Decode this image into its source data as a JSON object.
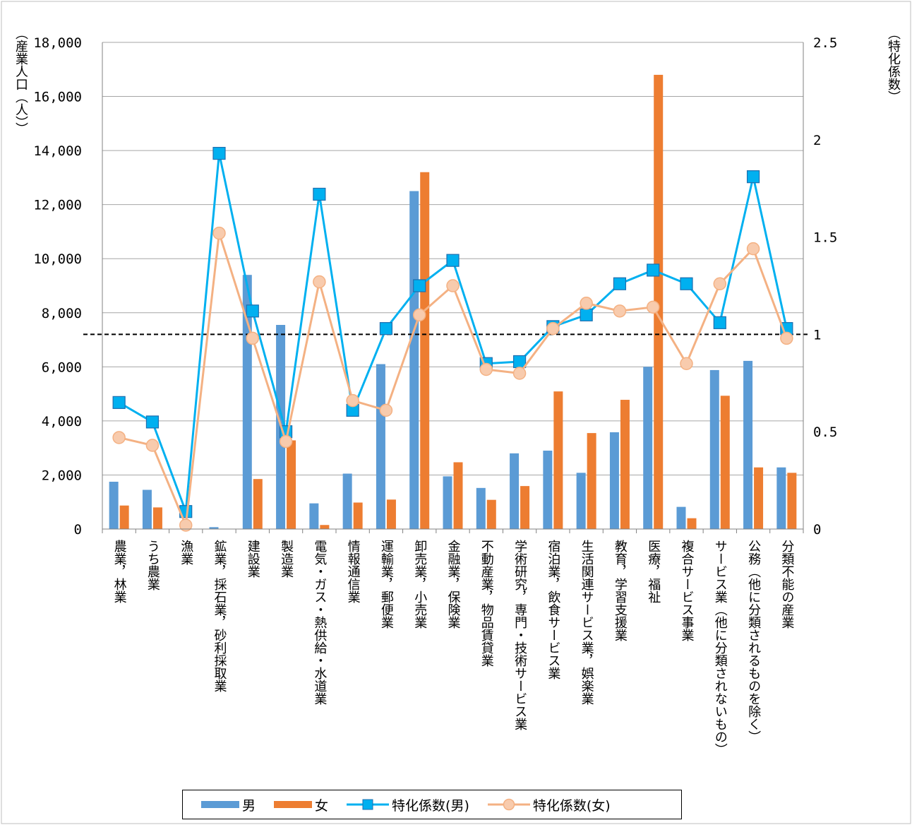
{
  "chart_data": {
    "type": "bar",
    "categories": [
      "農業，林業",
      "うち農業",
      "漁業",
      "鉱業，採石業，砂利採取業",
      "建設業",
      "製造業",
      "電気・ガス・熱供給・水道業",
      "情報通信業",
      "運輸業，郵便業",
      "卸売業，小売業",
      "金融業，保険業",
      "不動産業，物品賃貸業",
      "学術研究，専門・技術サービス業",
      "宿泊業，飲食サービス業",
      "生活関連サービス業，娯楽業",
      "教育，学習支援業",
      "医療，福祉",
      "複合サービス事業",
      "サービス業（他に分類されないもの）",
      "公務（他に分類されるものを除く）",
      "分類不能の産業"
    ],
    "series": [
      {
        "name": "男",
        "axis": "left",
        "kind": "bar",
        "color": "#5B9BD5",
        "values": [
          1750,
          1450,
          0,
          70,
          9400,
          7550,
          950,
          2050,
          6100,
          12500,
          1950,
          1520,
          2800,
          2900,
          2080,
          3580,
          6000,
          820,
          5880,
          6220,
          2280
        ]
      },
      {
        "name": "女",
        "axis": "left",
        "kind": "bar",
        "color": "#ED7D31",
        "values": [
          870,
          800,
          0,
          0,
          1850,
          3280,
          150,
          980,
          1090,
          13200,
          2470,
          1080,
          1590,
          5090,
          3550,
          4780,
          16800,
          400,
          4930,
          2280,
          2080
        ]
      },
      {
        "name": "特化係数(男)",
        "axis": "right",
        "kind": "line",
        "marker": "square",
        "color": "#00B0F0",
        "values": [
          0.65,
          0.55,
          0.09,
          1.93,
          1.12,
          0.5,
          1.72,
          0.61,
          1.03,
          1.25,
          1.38,
          0.85,
          0.86,
          1.04,
          1.1,
          1.26,
          1.33,
          1.26,
          1.06,
          1.81,
          1.03
        ]
      },
      {
        "name": "特化係数(女)",
        "axis": "right",
        "kind": "line",
        "marker": "circle",
        "color": "#F4B183",
        "marker_fill": "#F8CBAD",
        "values": [
          0.47,
          0.43,
          0.02,
          1.52,
          0.98,
          0.45,
          1.27,
          0.66,
          0.61,
          1.1,
          1.25,
          0.82,
          0.8,
          1.03,
          1.16,
          1.12,
          1.14,
          0.85,
          1.26,
          1.44,
          0.98
        ]
      }
    ],
    "y_left": {
      "title": "（産業人口（人））",
      "min": 0,
      "max": 18000,
      "ticks": [
        "0",
        "2,000",
        "4,000",
        "6,000",
        "8,000",
        "10,000",
        "12,000",
        "14,000",
        "16,000",
        "18,000"
      ]
    },
    "y_right": {
      "title": "（特化係数）",
      "min": 0,
      "max": 2.5,
      "ticks": [
        "0",
        "0.5",
        "1",
        "1.5",
        "2",
        "2.5"
      ]
    },
    "reference_line": {
      "axis": "right",
      "value": 1,
      "style": "dashed",
      "color": "#000000"
    },
    "grid": true,
    "legend_position": "bottom"
  },
  "legend": [
    {
      "label": "男",
      "kind": "bar",
      "color": "#5B9BD5"
    },
    {
      "label": "女",
      "kind": "bar",
      "color": "#ED7D31"
    },
    {
      "label": "特化係数(男)",
      "kind": "line",
      "marker": "square",
      "color": "#00B0F0"
    },
    {
      "label": "特化係数(女)",
      "kind": "line",
      "marker": "circle",
      "color": "#F4B183"
    }
  ]
}
